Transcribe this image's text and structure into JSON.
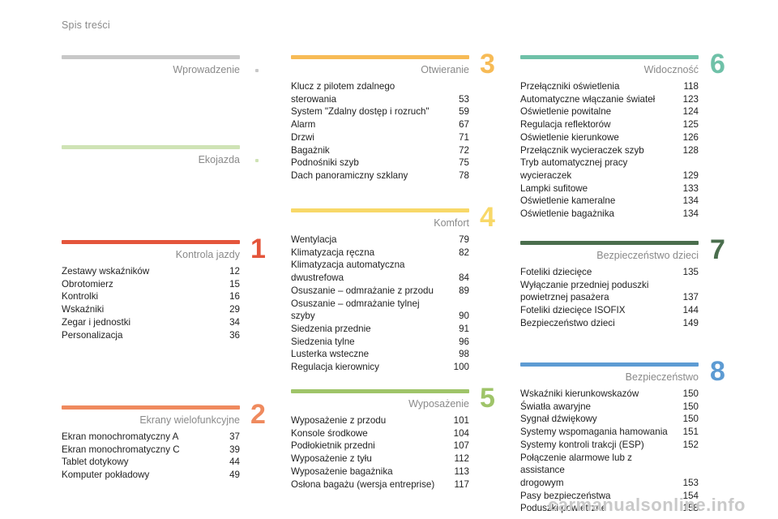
{
  "header": {
    "title": "Spis treści"
  },
  "watermark": "carmanualsonline.info",
  "sections": {
    "intro": {
      "title": "Wprowadzenie",
      "color": "#c8c8c8"
    },
    "eco": {
      "title": "Ekojazda",
      "color": "#cfe3b5"
    },
    "s1": {
      "title": "Kontrola jazdy",
      "number": "1",
      "color": "#e4553b",
      "items": [
        {
          "label": "Zestawy wskaźników",
          "page": "12"
        },
        {
          "label": "Obrotomierz",
          "page": "15"
        },
        {
          "label": "Kontrolki",
          "page": "16"
        },
        {
          "label": "Wskaźniki",
          "page": "29"
        },
        {
          "label": "Zegar i jednostki",
          "page": "34"
        },
        {
          "label": "Personalizacja",
          "page": "36"
        }
      ]
    },
    "s2": {
      "title": "Ekrany wielofunkcyjne",
      "number": "2",
      "color": "#ef8a5e",
      "items": [
        {
          "label": "Ekran monochromatyczny A",
          "page": "37"
        },
        {
          "label": "Ekran monochromatyczny C",
          "page": "39"
        },
        {
          "label": "Tablet dotykowy",
          "page": "44"
        },
        {
          "label": "Komputer pokładowy",
          "page": "49"
        }
      ]
    },
    "s3": {
      "title": "Otwieranie",
      "number": "3",
      "color": "#f7bb56",
      "items": [
        {
          "label": "Klucz z pilotem zdalnego sterowania",
          "page": "53"
        },
        {
          "label": "System \"Zdalny dostęp i rozruch\"",
          "page": "59"
        },
        {
          "label": "Alarm",
          "page": "67"
        },
        {
          "label": "Drzwi",
          "page": "71"
        },
        {
          "label": "Bagażnik",
          "page": "72"
        },
        {
          "label": "Podnośniki szyb",
          "page": "75"
        },
        {
          "label": "Dach panoramiczny szklany",
          "page": "78"
        }
      ]
    },
    "s4": {
      "title": "Komfort",
      "number": "4",
      "color": "#f8d868",
      "items": [
        {
          "label": "Wentylacja",
          "page": "79"
        },
        {
          "label": "Klimatyzacja ręczna",
          "page": "82"
        },
        {
          "label": "Klimatyzacja automatyczna dwustrefowa",
          "page": "84"
        },
        {
          "label": "Osuszanie – odmrażanie z przodu",
          "page": "89"
        },
        {
          "label": "Osuszanie – odmrażanie tylnej szyby",
          "page": "90"
        },
        {
          "label": "Siedzenia przednie",
          "page": "91"
        },
        {
          "label": "Siedzenia tylne",
          "page": "96"
        },
        {
          "label": "Lusterka wsteczne",
          "page": "98"
        },
        {
          "label": "Regulacja kierownicy",
          "page": "100"
        }
      ]
    },
    "s5": {
      "title": "Wyposażenie",
      "number": "5",
      "color": "#9fc469",
      "items": [
        {
          "label": "Wyposażenie z przodu",
          "page": "101"
        },
        {
          "label": "Konsole środkowe",
          "page": "104"
        },
        {
          "label": "Podłokietnik przedni",
          "page": "107"
        },
        {
          "label": "Wyposażenie z tyłu",
          "page": "112"
        },
        {
          "label": "Wyposażenie bagażnika",
          "page": "113"
        },
        {
          "label": "Osłona bagażu (wersja entreprise)",
          "page": "117"
        }
      ]
    },
    "s6": {
      "title": "Widoczność",
      "number": "6",
      "color": "#6fc1a8",
      "items": [
        {
          "label": "Przełączniki oświetlenia",
          "page": "118"
        },
        {
          "label": "Automatyczne włączanie świateł",
          "page": "123"
        },
        {
          "label": "Oświetlenie powitalne",
          "page": "124"
        },
        {
          "label": "Regulacja reflektorów",
          "page": "125"
        },
        {
          "label": "Oświetlenie kierunkowe",
          "page": "126"
        },
        {
          "label": "Przełącznik wycieraczek szyb",
          "page": "128"
        },
        {
          "label": "Tryb automatycznej pracy wycieraczek",
          "page": "129"
        },
        {
          "label": "Lampki sufitowe",
          "page": "133"
        },
        {
          "label": "Oświetlenie kameralne",
          "page": "134"
        },
        {
          "label": "Oświetlenie bagażnika",
          "page": "134"
        }
      ]
    },
    "s7": {
      "title": "Bezpieczeństwo dzieci",
      "number": "7",
      "color": "#4a6e4d",
      "items": [
        {
          "label": "Foteliki dziecięce",
          "page": "135"
        },
        {
          "label": "Wyłączanie przedniej poduszki\n  powietrznej pasażera",
          "page": "137"
        },
        {
          "label": "Foteliki dziecięce ISOFIX",
          "page": "144"
        },
        {
          "label": "Bezpieczeństwo dzieci",
          "page": "149"
        }
      ]
    },
    "s8": {
      "title": "Bezpieczeństwo",
      "number": "8",
      "color": "#5d9bd3",
      "items": [
        {
          "label": "Wskaźniki kierunkowskazów",
          "page": "150"
        },
        {
          "label": "Światła awaryjne",
          "page": "150"
        },
        {
          "label": "Sygnał dźwiękowy",
          "page": "150"
        },
        {
          "label": "Systemy wspomagania hamowania",
          "page": "151"
        },
        {
          "label": "Systemy kontroli trakcji (ESP)",
          "page": "152"
        },
        {
          "label": "Połączenie alarmowe lub z assistance\n  drogowym",
          "page": "153"
        },
        {
          "label": "Pasy bezpieczeństwa",
          "page": "154"
        },
        {
          "label": "Poduszki powietrzne",
          "page": "158"
        }
      ]
    }
  }
}
